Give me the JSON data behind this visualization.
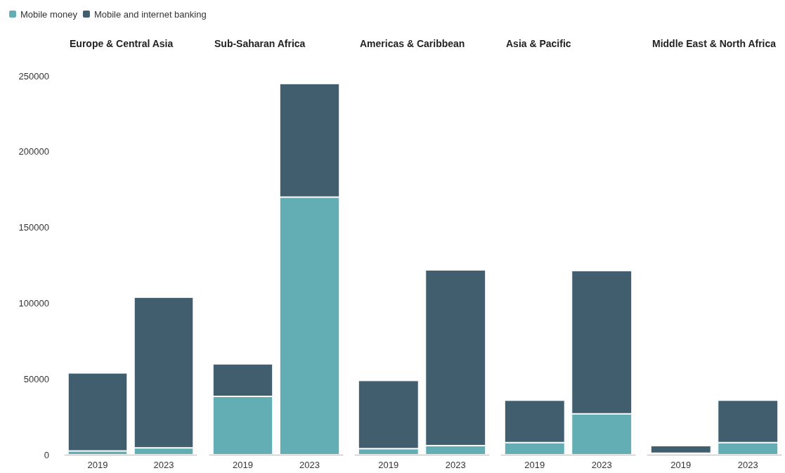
{
  "chart_data": [
    {
      "type": "bar",
      "title": "Europe & Central Asia",
      "categories": [
        "2019",
        "2023"
      ],
      "stacked": true,
      "ylim": [
        0,
        250000
      ],
      "yticks": [
        0,
        50000,
        100000,
        150000,
        200000,
        250000
      ],
      "grid": false,
      "legend": "top left",
      "series": [
        {
          "name": "Mobile money",
          "color": "#63aeb4",
          "values": [
            2500,
            4500
          ]
        },
        {
          "name": "Mobile and internet banking",
          "color": "#415e6f",
          "values": [
            51500,
            99500
          ]
        }
      ]
    },
    {
      "type": "bar",
      "title": "Sub-Saharan Africa",
      "categories": [
        "2019",
        "2023"
      ],
      "stacked": true,
      "ylim": [
        0,
        250000
      ],
      "grid": false,
      "tick_labels": "x",
      "series": [
        {
          "color": "#63aeb4",
          "values": [
            38500,
            170000
          ]
        },
        {
          "color": "#415e6f",
          "values": [
            21500,
            75000
          ]
        }
      ]
    },
    {
      "type": "bar",
      "title": "Americas & Caribbean",
      "categories": [
        "2019",
        "2023"
      ],
      "stacked": true,
      "ylim": [
        0,
        250000
      ],
      "grid": false,
      "tick_labels": "x",
      "series": [
        {
          "color": "#63aeb4",
          "values": [
            4000,
            6000
          ]
        },
        {
          "color": "#415e6f",
          "values": [
            45000,
            116000
          ]
        }
      ]
    },
    {
      "type": "bar",
      "title": "Asia & Pacific",
      "categories": [
        "2019",
        "2023"
      ],
      "stacked": true,
      "ylim": [
        0,
        250000
      ],
      "grid": false,
      "tick_labels": "x",
      "series": [
        {
          "color": "#63aeb4",
          "values": [
            8000,
            27000
          ]
        },
        {
          "color": "#415e6f",
          "values": [
            28000,
            94500
          ]
        }
      ]
    },
    {
      "type": "bar",
      "title": "Middle East & North Africa",
      "categories": [
        "2019",
        "2023"
      ],
      "stacked": true,
      "ylim": [
        0,
        250000
      ],
      "grid": false,
      "tick_labels": "x",
      "series": [
        {
          "color": "#63aeb4",
          "values": [
            1000,
            8000
          ]
        },
        {
          "color": "#415e6f",
          "values": [
            5000,
            28000
          ]
        }
      ]
    }
  ]
}
